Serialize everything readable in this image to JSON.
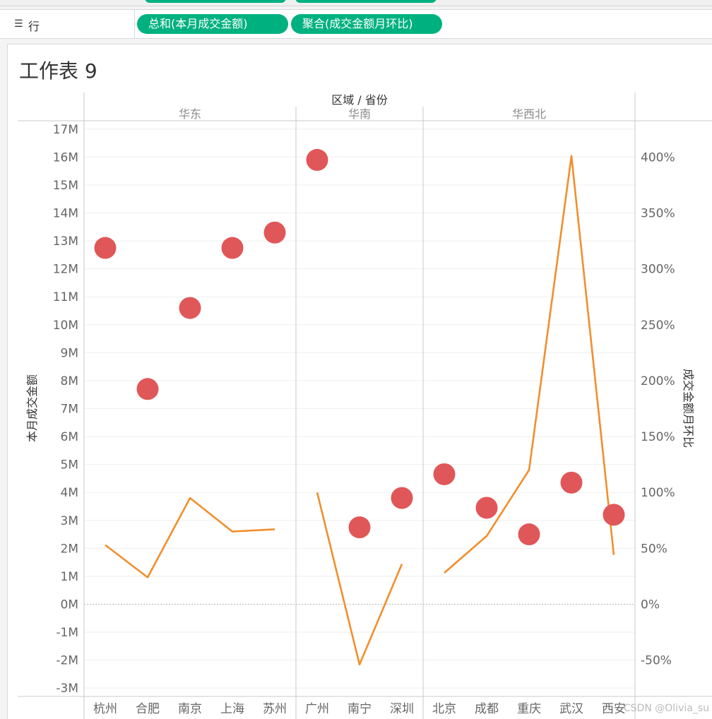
{
  "rows_shelf": {
    "label": "行",
    "icon": "list-icon",
    "pills": [
      "总和(本月成交金额)",
      "聚合(成交金额月环比)"
    ],
    "pill_color": "#00b180"
  },
  "sheet_title": "工作表 9",
  "watermark": "CSDN @Olivia_su",
  "chart_data": {
    "type": "dual-axis",
    "column_header_title": "区域 / 省份",
    "regions": [
      {
        "name": "华东",
        "provinces": [
          "杭州",
          "合肥",
          "南京",
          "上海",
          "苏州"
        ]
      },
      {
        "name": "华南",
        "provinces": [
          "广州",
          "南宁",
          "深圳"
        ]
      },
      {
        "name": "华西北",
        "provinces": [
          "北京",
          "成都",
          "重庆",
          "武汉",
          "西安"
        ]
      }
    ],
    "left_axis": {
      "title": "本月成交金额",
      "min": -3.3,
      "max": 17.3,
      "ticks": [
        -3,
        -2,
        -1,
        0,
        1,
        2,
        3,
        4,
        5,
        6,
        7,
        8,
        9,
        10,
        11,
        12,
        13,
        14,
        15,
        16,
        17
      ],
      "tick_labels": [
        "-3M",
        "-2M",
        "-1M",
        "0M",
        "1M",
        "2M",
        "3M",
        "4M",
        "5M",
        "6M",
        "7M",
        "8M",
        "9M",
        "10M",
        "11M",
        "12M",
        "13M",
        "14M",
        "15M",
        "16M",
        "17M"
      ]
    },
    "right_axis": {
      "title": "成交金额月环比",
      "min": -82.5,
      "max": 432.5,
      "ticks": [
        -50,
        0,
        50,
        100,
        150,
        200,
        250,
        300,
        350,
        400
      ],
      "tick_labels": [
        "-50%",
        "0%",
        "50%",
        "100%",
        "150%",
        "200%",
        "250%",
        "300%",
        "350%",
        "400%"
      ]
    },
    "series": [
      {
        "name": "本月成交金额",
        "mark": "circle",
        "axis": "left",
        "color": "#e05759",
        "values": [
          [
            12.75,
            7.7,
            10.6,
            12.75,
            13.3
          ],
          [
            15.9,
            2.75,
            3.8
          ],
          [
            4.65,
            3.45,
            2.5,
            4.35,
            3.2
          ]
        ]
      },
      {
        "name": "成交金额月环比",
        "mark": "line",
        "axis": "right",
        "color": "#f28e2b",
        "values": [
          [
            53,
            24,
            95,
            65,
            67
          ],
          [
            100,
            -54,
            36
          ],
          [
            28,
            61,
            120,
            401,
            44
          ]
        ]
      }
    ],
    "grid": true,
    "zero_line": true
  }
}
